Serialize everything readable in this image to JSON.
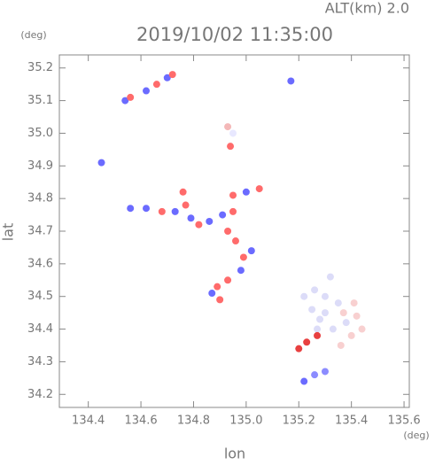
{
  "chart_data": {
    "type": "scatter",
    "title": "2019/10/02 11:35:00",
    "subtitle": "ALT(km) 2.0",
    "x_label": "lon",
    "y_label": "lat",
    "x_unit": "(deg)",
    "y_unit": "(deg)",
    "xlim": [
      134.29,
      135.62
    ],
    "ylim": [
      34.16,
      35.24
    ],
    "xticks": [
      134.4,
      134.6,
      134.8,
      {
        "value": 135,
        "label": "135.0"
      },
      135.2,
      135.4,
      135.6
    ],
    "yticks": [
      34.2,
      34.3,
      34.4,
      34.5,
      34.6,
      34.7,
      34.8,
      34.9,
      {
        "value": 35,
        "label": "35.0"
      },
      35.1,
      35.2
    ],
    "x": [
      134.54,
      134.56,
      134.62,
      134.66,
      134.7,
      134.72,
      134.45,
      134.93,
      134.95,
      134.94,
      135.17,
      134.56,
      134.62,
      134.68,
      134.73,
      134.76,
      134.77,
      134.79,
      134.82,
      134.86,
      134.91,
      134.95,
      134.95,
      135.0,
      135.05,
      134.93,
      134.96,
      135.02,
      134.99,
      134.98,
      134.93,
      134.89,
      134.87,
      134.9,
      135.22,
      135.26,
      135.3,
      135.25,
      135.3,
      135.35,
      135.27,
      135.33,
      135.38,
      135.32,
      135.28,
      135.37,
      135.42,
      135.4,
      135.36,
      135.44,
      135.41,
      135.2,
      135.23,
      135.27,
      135.22,
      135.26,
      135.3
    ],
    "y": [
      35.1,
      35.11,
      35.13,
      35.15,
      35.17,
      35.18,
      34.91,
      35.02,
      35.0,
      34.96,
      35.16,
      34.77,
      34.77,
      34.76,
      34.76,
      34.82,
      34.78,
      34.74,
      34.72,
      34.73,
      34.75,
      34.76,
      34.81,
      34.82,
      34.83,
      34.7,
      34.67,
      34.64,
      34.62,
      34.58,
      34.55,
      34.53,
      34.51,
      34.49,
      34.5,
      34.52,
      34.5,
      34.46,
      34.45,
      34.48,
      34.4,
      34.4,
      34.42,
      34.56,
      34.43,
      34.45,
      34.44,
      34.38,
      34.35,
      34.4,
      34.48,
      34.34,
      34.36,
      34.38,
      34.24,
      34.26,
      34.27
    ],
    "colors": [
      "#6b6bff",
      "#ff6b6b",
      "#6b6bff",
      "#ff6b6b",
      "#6b6bff",
      "#ff6b6b",
      "#6b6bff",
      "#f4b8b8",
      "#e8e8ff",
      "#ff6b6b",
      "#6b6bff",
      "#6b6bff",
      "#6b6bff",
      "#ff6b6b",
      "#6b6bff",
      "#ff6b6b",
      "#ff6b6b",
      "#6b6bff",
      "#ff6b6b",
      "#6b6bff",
      "#6b6bff",
      "#ff6b6b",
      "#ff6b6b",
      "#6b6bff",
      "#ff6b6b",
      "#ff6b6b",
      "#ff6b6b",
      "#6b6bff",
      "#ff6b6b",
      "#6b6bff",
      "#ff6b6b",
      "#ff6b6b",
      "#6b6bff",
      "#ff6b6b",
      "#dcdcf8",
      "#dcdcf8",
      "#dcdcf8",
      "#dcdcf8",
      "#dcdcf8",
      "#dcdcf8",
      "#dcdcf8",
      "#dcdcf8",
      "#dcdcf8",
      "#dcdcf8",
      "#dcdcf8",
      "#f8d0d0",
      "#f8d0d0",
      "#f8d0d0",
      "#f8d0d0",
      "#f8d0d0",
      "#f8d0d0",
      "#e84040",
      "#e84040",
      "#e84040",
      "#6b6bff",
      "#8c8cff",
      "#8c8cff"
    ]
  }
}
